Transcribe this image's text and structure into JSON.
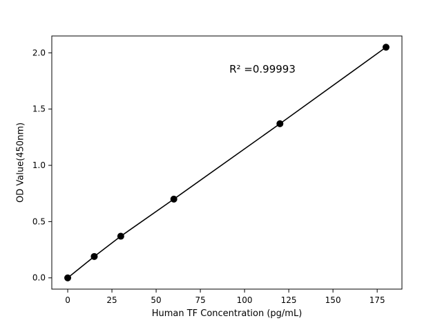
{
  "chart_data": {
    "type": "scatter",
    "title": "",
    "xlabel": "Human TF Concentration (pg/mL)",
    "ylabel": "OD Value(450nm)",
    "annotation": "R² =0.99993",
    "x": [
      0,
      15,
      30,
      60,
      120,
      180
    ],
    "y": [
      0.0,
      0.19,
      0.37,
      0.7,
      1.37,
      2.05
    ],
    "xlim": [
      -9,
      189
    ],
    "ylim": [
      -0.1,
      2.15
    ],
    "xticks": [
      "0",
      "25",
      "50",
      "75",
      "100",
      "125",
      "150",
      "175"
    ],
    "yticks": [
      "0.0",
      "0.5",
      "1.0",
      "1.5",
      "2.0"
    ],
    "line_color": "#000000",
    "marker_color": "#000000",
    "axis_color": "#000000",
    "background": "#ffffff",
    "legend": "none",
    "grid": "off"
  }
}
